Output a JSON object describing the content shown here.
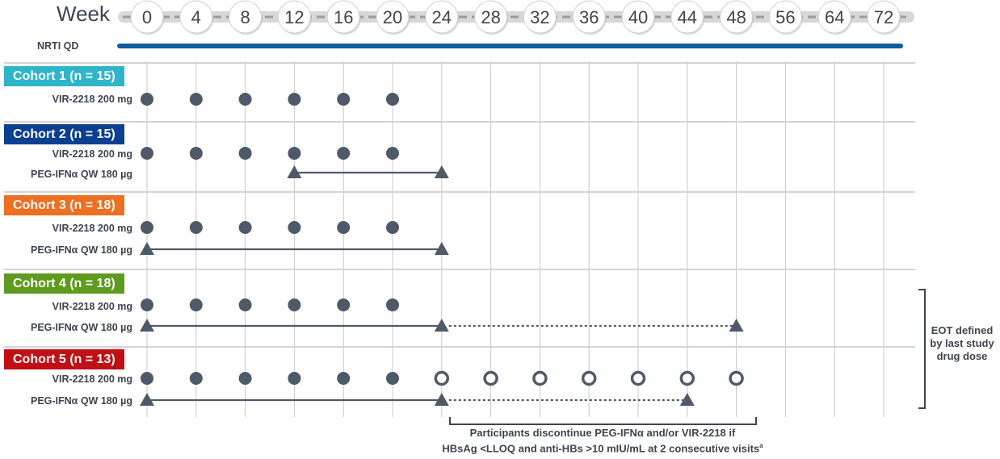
{
  "header": {
    "week_label": "Week",
    "weeks": [
      "0",
      "4",
      "8",
      "12",
      "16",
      "20",
      "24",
      "28",
      "32",
      "36",
      "40",
      "44",
      "48",
      "56",
      "64",
      "72"
    ],
    "nrti_label": "NRTI QD"
  },
  "cohorts": [
    {
      "title": "Cohort 1 (n = 15)",
      "color": "#2fb5c9",
      "rows": [
        {
          "label": "VIR-2218 200 mg",
          "type": "dots",
          "filled": [
            "0",
            "4",
            "8",
            "12",
            "16",
            "20"
          ],
          "hollow": []
        }
      ]
    },
    {
      "title": "Cohort 2 (n = 15)",
      "color": "#0b3f91",
      "rows": [
        {
          "label": "VIR-2218 200 mg",
          "type": "dots",
          "filled": [
            "0",
            "4",
            "8",
            "12",
            "16",
            "20"
          ],
          "hollow": []
        },
        {
          "label": "PEG-IFNα QW 180 µg",
          "type": "bar",
          "start": "12",
          "end": "24",
          "dotted_end": null
        }
      ]
    },
    {
      "title": "Cohort 3 (n = 18)",
      "color": "#ec6f22",
      "rows": [
        {
          "label": "VIR-2218 200 mg",
          "type": "dots",
          "filled": [
            "0",
            "4",
            "8",
            "12",
            "16",
            "20"
          ],
          "hollow": []
        },
        {
          "label": "PEG-IFNα QW 180 µg",
          "type": "bar",
          "start": "0",
          "end": "24",
          "dotted_end": null
        }
      ]
    },
    {
      "title": "Cohort 4 (n = 18)",
      "color": "#5e9b1e",
      "rows": [
        {
          "label": "VIR-2218 200 mg",
          "type": "dots",
          "filled": [
            "0",
            "4",
            "8",
            "12",
            "16",
            "20"
          ],
          "hollow": []
        },
        {
          "label": "PEG-IFNα QW 180 µg",
          "type": "bar",
          "start": "0",
          "end": "24",
          "dotted_end": "48"
        }
      ]
    },
    {
      "title": "Cohort 5 (n = 13)",
      "color": "#c00f15",
      "rows": [
        {
          "label": "VIR-2218 200 mg",
          "type": "dots",
          "filled": [
            "0",
            "4",
            "8",
            "12",
            "16",
            "20"
          ],
          "hollow": [
            "24",
            "28",
            "32",
            "36",
            "40",
            "44",
            "48"
          ]
        },
        {
          "label": "PEG-IFNα QW 180 µg",
          "type": "bar",
          "start": "0",
          "end": "24",
          "dotted_end": "44"
        }
      ]
    }
  ],
  "eot_note": "EOT defined by last study drug dose",
  "discontinue_note": {
    "line1": "Participants discontinue PEG-IFNα and/or VIR-2218 if",
    "line2": "HBsAg <LLOQ and anti-HBs >10 mIU/mL at 2 consecutive visits",
    "footnote_mark": "a"
  },
  "colors": {
    "text": "#3d4550",
    "marker": "#4f5a69",
    "nrti_bar": "#0b5ca1",
    "grid": "#c8c8c8",
    "separator": "#d4d4d4"
  }
}
